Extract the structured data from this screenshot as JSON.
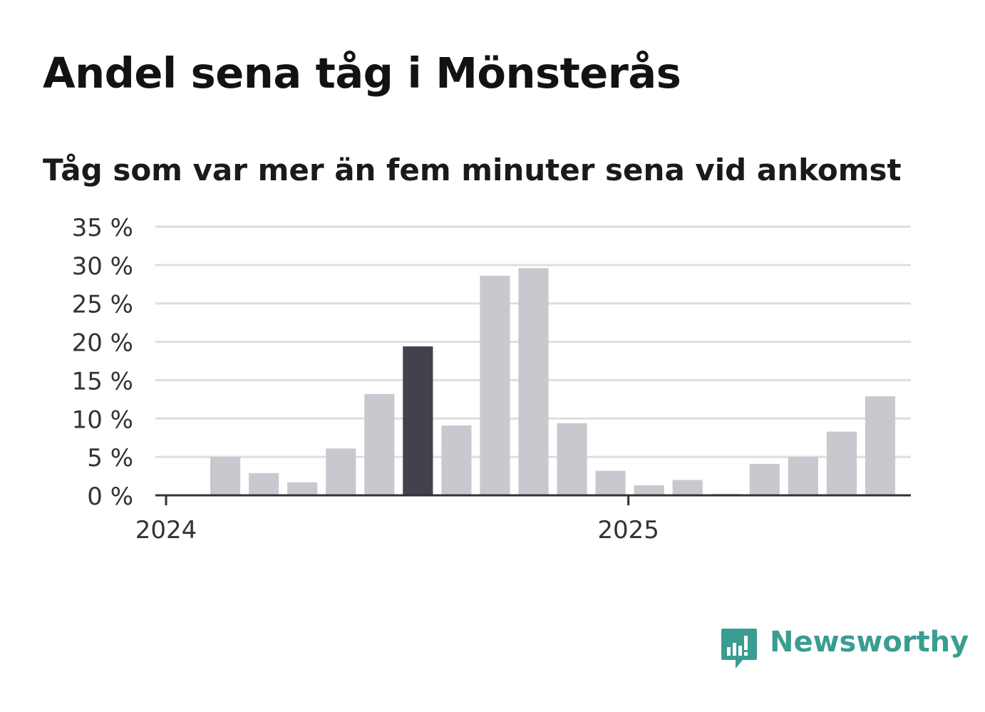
{
  "title": "Andel sena tåg i Mönsterås",
  "subtitle": "Tåg som var mer än fem minuter sena vid ankomst",
  "logo": {
    "text": "Newsworthy",
    "icon": "bar-chart-speech-bubble-icon",
    "color": "#3a9d91"
  },
  "chart_data": {
    "type": "bar",
    "ylim": [
      0,
      35
    ],
    "yticks": [
      0,
      5,
      10,
      15,
      20,
      25,
      30,
      35
    ],
    "ytick_labels": [
      "0 %",
      "5 %",
      "10 %",
      "15 %",
      "20 %",
      "25 %",
      "30 %",
      "35 %"
    ],
    "xtick_labels": [
      "2024",
      "2025"
    ],
    "grid": true,
    "colors": {
      "default": "#c9c8ce",
      "highlight_dark": "#43424c",
      "highlight_latest": "#00a397",
      "grid": "#dedede",
      "axis": "#333333"
    },
    "categories": [
      "2024-01",
      "2024-02",
      "2024-03",
      "2024-04",
      "2024-05",
      "2024-06",
      "2024-07",
      "2024-08",
      "2024-09",
      "2024-10",
      "2024-11",
      "2024-12",
      "2025-01",
      "2025-02",
      "2025-03",
      "2025-04",
      "2025-05",
      "2025-06",
      "2025-07",
      "2025-08"
    ],
    "values": [
      null,
      5.0,
      2.9,
      1.7,
      6.1,
      13.2,
      19.4,
      9.1,
      28.6,
      29.6,
      9.4,
      3.2,
      1.3,
      2.0,
      0.2,
      4.1,
      5.0,
      8.3,
      12.9,
      null
    ],
    "highlight": {
      "2024-07": "highlight_dark",
      "2025-08": "highlight_latest"
    }
  }
}
